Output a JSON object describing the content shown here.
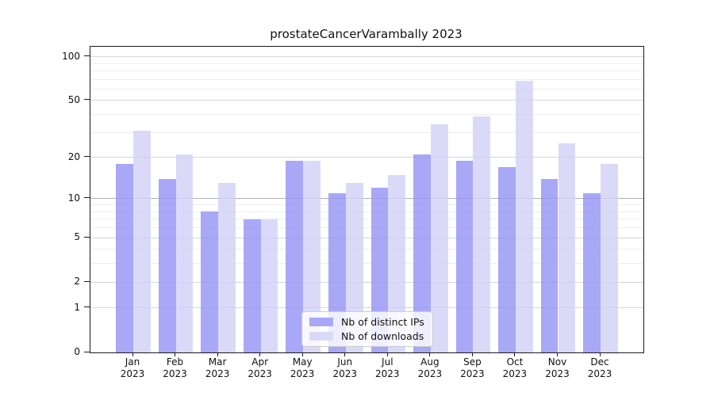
{
  "chart_data": {
    "type": "bar",
    "title": "prostateCancerVarambally 2023",
    "categories": [
      "Jan",
      "Feb",
      "Mar",
      "Apr",
      "May",
      "Jun",
      "Jul",
      "Aug",
      "Sep",
      "Oct",
      "Nov",
      "Dec"
    ],
    "year_label": "2023",
    "series": [
      {
        "name": "Nb of distinct IPs",
        "color": "#a8a8f7",
        "values": [
          18,
          14,
          8,
          7,
          19,
          11,
          12,
          21,
          19,
          17,
          14,
          11
        ]
      },
      {
        "name": "Nb of downloads",
        "color": "#dadaf8",
        "values": [
          31,
          21,
          13,
          7,
          19,
          13,
          15,
          34,
          39,
          68,
          25,
          18
        ]
      }
    ],
    "yscale": "log1p",
    "ylabel": "",
    "xlabel": "",
    "ytick_labels": [
      "100",
      "50",
      "20",
      "10",
      "5",
      "2",
      "1",
      "0"
    ],
    "ytick_values": [
      100,
      50,
      20,
      10,
      5,
      2,
      1,
      0
    ],
    "minor_gridline_values": [
      3,
      4,
      6,
      7,
      8,
      9,
      30,
      40,
      60,
      70,
      80,
      90
    ],
    "grid": true,
    "legend_position": "bottom-center",
    "axis_color": "#1a1a1a",
    "major_grid_color": "#d6d6d6",
    "minor_grid_color": "#ededed"
  }
}
